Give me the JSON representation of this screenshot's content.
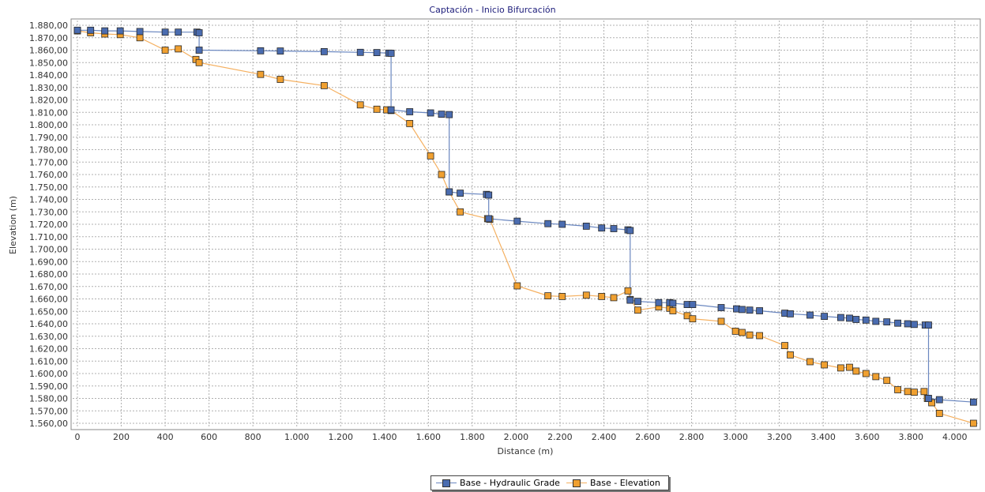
{
  "colors": {
    "hydraulic_line": "#6a87c0",
    "hydraulic_marker": "#4a6cb0",
    "elevation_line": "#f5b060",
    "elevation_marker": "#f0a030",
    "grid": "#b0b0b0",
    "background": "#ffffff"
  },
  "legend": {
    "hydraulic_label": "Base - Hydraulic Grade",
    "elevation_label": "Base - Elevation"
  },
  "chart_data": {
    "type": "line",
    "title": "Captación - Inicio Bifurcación",
    "xlabel": "Distance (m)",
    "ylabel": "Elevation (m)",
    "xlim": [
      0,
      4100
    ],
    "ylim": [
      1560,
      1880
    ],
    "x_ticks": [
      "0",
      "200",
      "400",
      "600",
      "800",
      "1.000",
      "1.200",
      "1.400",
      "1.600",
      "1.800",
      "2.000",
      "2.200",
      "2.400",
      "2.600",
      "2.800",
      "3.000",
      "3.200",
      "3.400",
      "3.600",
      "3.800",
      "4.000"
    ],
    "y_ticks": [
      "1.560,00",
      "1.570,00",
      "1.580,00",
      "1.590,00",
      "1.600,00",
      "1.610,00",
      "1.620,00",
      "1.630,00",
      "1.640,00",
      "1.650,00",
      "1.660,00",
      "1.670,00",
      "1.680,00",
      "1.690,00",
      "1.700,00",
      "1.710,00",
      "1.720,00",
      "1.730,00",
      "1.740,00",
      "1.750,00",
      "1.760,00",
      "1.770,00",
      "1.780,00",
      "1.790,00",
      "1.800,00",
      "1.810,00",
      "1.820,00",
      "1.830,00",
      "1.840,00",
      "1.850,00",
      "1.860,00",
      "1.870,00",
      "1.880,00"
    ],
    "grid": true,
    "legend_position": "bottom-center",
    "series": [
      {
        "name": "Base - Hydraulic Grade",
        "points": [
          [
            0,
            1876
          ],
          [
            60,
            1876
          ],
          [
            125,
            1875.5
          ],
          [
            195,
            1875.5
          ],
          [
            285,
            1875
          ],
          [
            400,
            1874.5
          ],
          [
            460,
            1874.5
          ],
          [
            545,
            1874.5
          ],
          [
            555,
            1874
          ],
          [
            555,
            1860
          ],
          [
            835,
            1859.5
          ],
          [
            925,
            1859.3
          ],
          [
            1125,
            1858.8
          ],
          [
            1290,
            1858.2
          ],
          [
            1365,
            1858
          ],
          [
            1420,
            1857.6
          ],
          [
            1430,
            1857.5
          ],
          [
            1430,
            1812
          ],
          [
            1515,
            1810.5
          ],
          [
            1610,
            1809.5
          ],
          [
            1660,
            1808.5
          ],
          [
            1695,
            1808.2
          ],
          [
            1695,
            1746
          ],
          [
            1745,
            1745
          ],
          [
            1865,
            1744
          ],
          [
            1875,
            1743.5
          ],
          [
            1875,
            1724.5
          ],
          [
            2005,
            1722.5
          ],
          [
            2145,
            1720.5
          ],
          [
            2210,
            1720
          ],
          [
            2320,
            1718.5
          ],
          [
            2390,
            1717
          ],
          [
            2445,
            1716.5
          ],
          [
            2510,
            1715.5
          ],
          [
            2520,
            1715
          ],
          [
            2520,
            1659
          ],
          [
            2555,
            1658
          ],
          [
            2650,
            1657
          ],
          [
            2700,
            1657
          ],
          [
            2715,
            1656.5
          ],
          [
            2780,
            1655.5
          ],
          [
            2805,
            1655.5
          ],
          [
            2935,
            1653
          ],
          [
            3005,
            1652
          ],
          [
            3030,
            1651.5
          ],
          [
            3065,
            1651
          ],
          [
            3110,
            1650.5
          ],
          [
            3225,
            1648.5
          ],
          [
            3250,
            1648
          ],
          [
            3340,
            1647
          ],
          [
            3405,
            1646
          ],
          [
            3480,
            1645
          ],
          [
            3520,
            1644.5
          ],
          [
            3550,
            1643.5
          ],
          [
            3595,
            1643
          ],
          [
            3640,
            1642
          ],
          [
            3690,
            1641.5
          ],
          [
            3740,
            1640.5
          ],
          [
            3785,
            1640
          ],
          [
            3815,
            1639.5
          ],
          [
            3865,
            1639
          ],
          [
            3880,
            1639
          ],
          [
            3880,
            1580
          ],
          [
            3930,
            1579
          ],
          [
            4085,
            1577
          ]
        ]
      },
      {
        "name": "Base - Elevation",
        "points": [
          [
            0,
            1875.5
          ],
          [
            60,
            1874
          ],
          [
            125,
            1873
          ],
          [
            195,
            1872.5
          ],
          [
            285,
            1870
          ],
          [
            400,
            1860
          ],
          [
            460,
            1861
          ],
          [
            540,
            1852.5
          ],
          [
            555,
            1850
          ],
          [
            835,
            1840.5
          ],
          [
            925,
            1836.5
          ],
          [
            1125,
            1831.5
          ],
          [
            1290,
            1816
          ],
          [
            1365,
            1812.5
          ],
          [
            1410,
            1812
          ],
          [
            1430,
            1811.5
          ],
          [
            1515,
            1801
          ],
          [
            1610,
            1775
          ],
          [
            1660,
            1760
          ],
          [
            1695,
            1746
          ],
          [
            1745,
            1730
          ],
          [
            1870,
            1724.5
          ],
          [
            1880,
            1724
          ],
          [
            2005,
            1670.5
          ],
          [
            2145,
            1662.5
          ],
          [
            2210,
            1662
          ],
          [
            2320,
            1663
          ],
          [
            2390,
            1662
          ],
          [
            2445,
            1661
          ],
          [
            2510,
            1666.5
          ],
          [
            2520,
            1659.5
          ],
          [
            2555,
            1651
          ],
          [
            2650,
            1653.5
          ],
          [
            2700,
            1652.5
          ],
          [
            2715,
            1650.5
          ],
          [
            2780,
            1646.5
          ],
          [
            2805,
            1644
          ],
          [
            2935,
            1642
          ],
          [
            3000,
            1634
          ],
          [
            3030,
            1633
          ],
          [
            3065,
            1631
          ],
          [
            3110,
            1630.5
          ],
          [
            3225,
            1622.5
          ],
          [
            3250,
            1615
          ],
          [
            3340,
            1609.5
          ],
          [
            3405,
            1607
          ],
          [
            3480,
            1604.5
          ],
          [
            3520,
            1605
          ],
          [
            3550,
            1602
          ],
          [
            3595,
            1600
          ],
          [
            3640,
            1597.5
          ],
          [
            3690,
            1594.5
          ],
          [
            3740,
            1587
          ],
          [
            3785,
            1585.5
          ],
          [
            3815,
            1585
          ],
          [
            3860,
            1585.5
          ],
          [
            3875,
            1580
          ],
          [
            3895,
            1576.5
          ],
          [
            3930,
            1568
          ],
          [
            4085,
            1560
          ]
        ]
      }
    ]
  }
}
